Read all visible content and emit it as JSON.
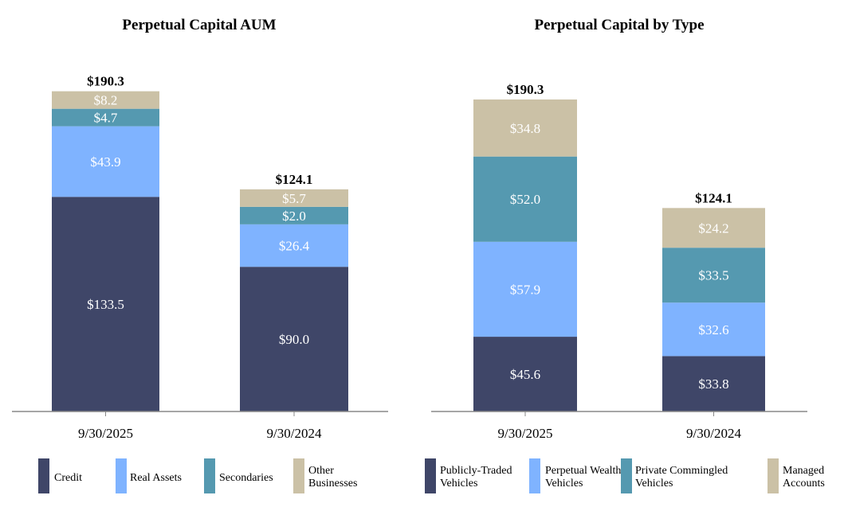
{
  "chart_data": [
    {
      "type": "bar",
      "stacked": true,
      "title": "Perpetual Capital AUM",
      "categories": [
        "9/30/2025",
        "9/30/2024"
      ],
      "totals": [
        "$190.3",
        "$124.1"
      ],
      "series": [
        {
          "name": "Credit",
          "legend_lines": [
            "Credit"
          ],
          "color": "#3f4668",
          "values": [
            133.5,
            90.0
          ],
          "labels": [
            "$133.5",
            "$90.0"
          ]
        },
        {
          "name": "Real Assets",
          "legend_lines": [
            "Real Assets"
          ],
          "color": "#7fb3ff",
          "values": [
            43.9,
            26.4
          ],
          "labels": [
            "$43.9",
            "$26.4"
          ]
        },
        {
          "name": "Secondaries",
          "legend_lines": [
            "Secondaries"
          ],
          "color": "#5599b0",
          "values": [
            4.7,
            2.0
          ],
          "labels": [
            "$4.7",
            "$2.0"
          ]
        },
        {
          "name": "Other Businesses",
          "legend_lines": [
            "Other",
            "Businesses"
          ],
          "color": "#cbc1a6",
          "values": [
            8.2,
            5.7
          ],
          "labels": [
            "$8.2",
            "$5.7"
          ]
        }
      ],
      "legend": "bottom"
    },
    {
      "type": "bar",
      "stacked": true,
      "title": "Perpetual Capital by Type",
      "categories": [
        "9/30/2025",
        "9/30/2024"
      ],
      "totals": [
        "$190.3",
        "$124.1"
      ],
      "series": [
        {
          "name": "Publicly-Traded Vehicles",
          "legend_lines": [
            "Publicly-Traded",
            "Vehicles"
          ],
          "color": "#3f4668",
          "values": [
            45.6,
            33.8
          ],
          "labels": [
            "$45.6",
            "$33.8"
          ]
        },
        {
          "name": "Perpetual Wealth Vehicles",
          "legend_lines": [
            "Perpetual Wealth",
            "Vehicles"
          ],
          "color": "#7fb3ff",
          "values": [
            57.9,
            32.6
          ],
          "labels": [
            "$57.9",
            "$32.6"
          ]
        },
        {
          "name": "Private Commingled Vehicles",
          "legend_lines": [
            "Private Commingled",
            "Vehicles"
          ],
          "color": "#5599b0",
          "values": [
            52.0,
            33.5
          ],
          "labels": [
            "$52.0",
            "$33.5"
          ]
        },
        {
          "name": "Managed Accounts",
          "legend_lines": [
            "Managed",
            "Accounts"
          ],
          "color": "#cbc1a6",
          "values": [
            34.8,
            24.2
          ],
          "labels": [
            "$34.8",
            "$24.2"
          ]
        }
      ],
      "legend": "bottom"
    }
  ]
}
